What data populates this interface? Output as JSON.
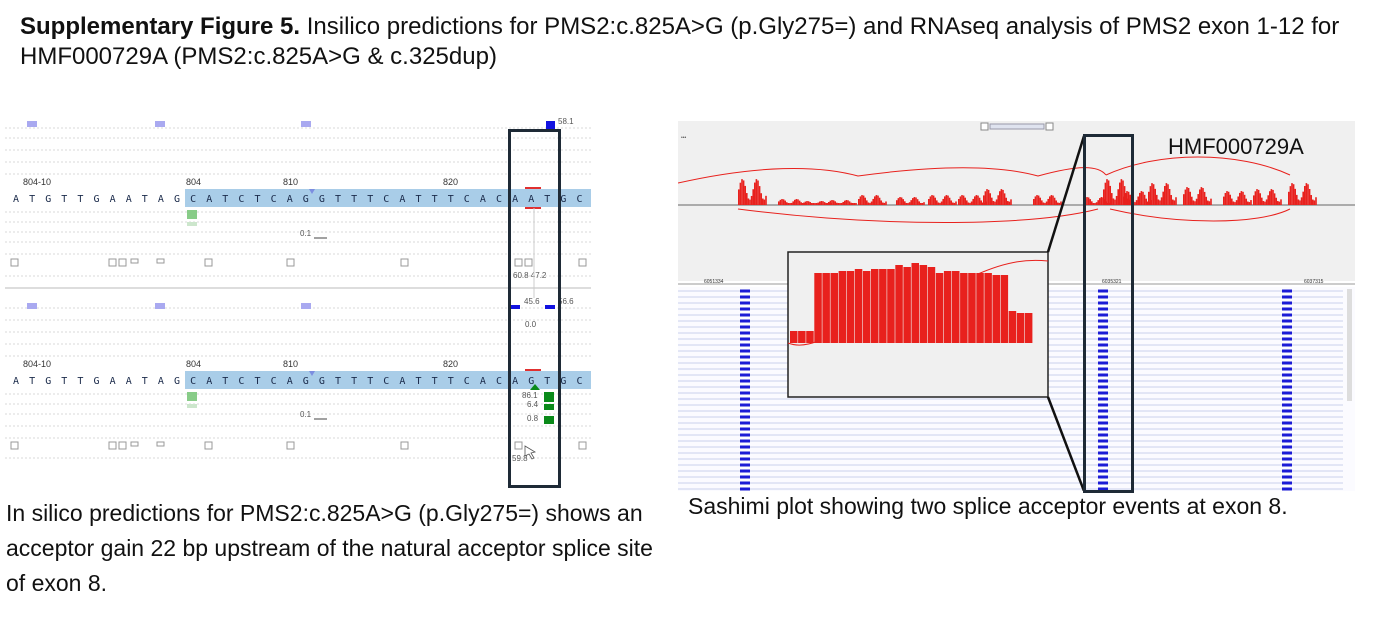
{
  "figure": {
    "title_bold": "Supplementary Figure 5.",
    "title_rest": " Insilico predictions for PMS2:c.825A>G (p.Gly275=) and RNAseq analysis of PMS2 exon 1-12 for HMF000729A (PMS2:c.825A>G & c.325dup)"
  },
  "left_panel": {
    "track1": {
      "top_value": "58.1",
      "markers": [
        "804-10",
        "804",
        "810",
        "820"
      ],
      "sequence": [
        "A",
        "T",
        "G",
        "T",
        "T",
        "G",
        "A",
        "A",
        "T",
        "A",
        "G",
        "C",
        "A",
        "T",
        "C",
        "T",
        "C",
        "A",
        "G",
        "G",
        "T",
        "T",
        "T",
        "C",
        "A",
        "T",
        "T",
        "T",
        "C",
        "A",
        "C",
        "A",
        "A",
        "T",
        "G",
        "C"
      ],
      "score_small": "0.1",
      "bottom_values": "60.8 47.2"
    },
    "track2": {
      "top_values": [
        "45.6",
        "56.6"
      ],
      "zero": "0.0",
      "markers": [
        "804-10",
        "804",
        "810",
        "820"
      ],
      "sequence": [
        "A",
        "T",
        "G",
        "T",
        "T",
        "G",
        "A",
        "A",
        "T",
        "A",
        "G",
        "C",
        "A",
        "T",
        "C",
        "T",
        "C",
        "A",
        "G",
        "G",
        "T",
        "T",
        "T",
        "C",
        "A",
        "T",
        "T",
        "T",
        "C",
        "A",
        "C",
        "A",
        "G",
        "T",
        "G",
        "C"
      ],
      "scores": [
        "86.1",
        "6.4",
        "0.8"
      ],
      "score_small": "0.1",
      "bottom_value": "59.8"
    }
  },
  "right_panel": {
    "sample_label": "HMF000729A",
    "coord_left": "6051334",
    "coord_mid": "6035321",
    "coord_right": "6037315"
  },
  "captions": {
    "left": "In silico predictions for PMS2:c.825A>G (p.Gly275=) shows an acceptor gain 22 bp upstream of the natural acceptor splice site of exon 8.",
    "right": "Sashimi plot showing two splice acceptor events at exon 8."
  },
  "colors": {
    "sequence_highlight": "#a9cde8",
    "coverage": "#e8211d",
    "exon_blue": "#1b1bd6",
    "score_blue": "#1212e0",
    "score_green": "#0a8a1a",
    "frame": "#1e2a36"
  }
}
